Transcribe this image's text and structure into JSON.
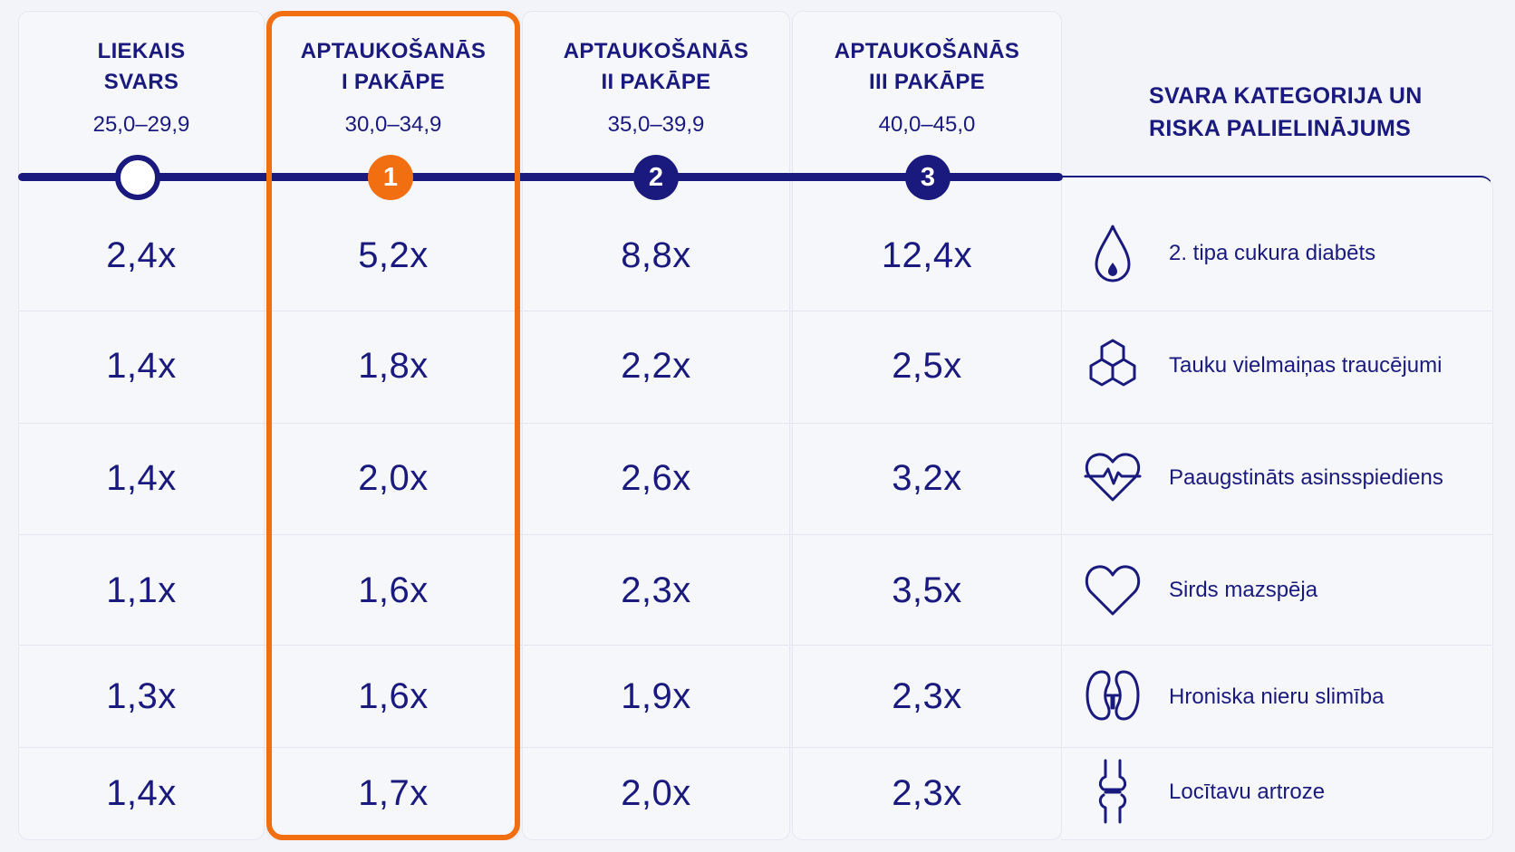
{
  "categories": [
    {
      "title_line1": "LIEKAIS",
      "title_line2": "SVARS",
      "bmi_range": "25,0–29,9",
      "marker_label": "",
      "marker_style": "empty"
    },
    {
      "title_line1": "APTAUKOŠANĀS",
      "title_line2": "I PAKĀPE",
      "bmi_range": "30,0–34,9",
      "marker_label": "1",
      "marker_style": "orange"
    },
    {
      "title_line1": "APTAUKOŠANĀS",
      "title_line2": "II PAKĀPE",
      "bmi_range": "35,0–39,9",
      "marker_label": "2",
      "marker_style": "navy"
    },
    {
      "title_line1": "APTAUKOŠANĀS",
      "title_line2": "III PAKĀPE",
      "bmi_range": "40,0–45,0",
      "marker_label": "3",
      "marker_style": "navy"
    }
  ],
  "right_header": {
    "line1": "SVARA KATEGORIJA UN",
    "line2": "RISKA PALIELINĀJUMS"
  },
  "rows": [
    {
      "condition": "2. tipa cukura diabēts",
      "icon": "blood-drop-icon",
      "values": [
        "2,4x",
        "5,2x",
        "8,8x",
        "12,4x"
      ]
    },
    {
      "condition": "Tauku vielmaiņas traucējumi",
      "icon": "hexagon-molecule-icon",
      "values": [
        "1,4x",
        "1,8x",
        "2,2x",
        "2,5x"
      ]
    },
    {
      "condition": "Paaugstināts asinsspiediens",
      "icon": "heart-pulse-icon",
      "values": [
        "1,4x",
        "2,0x",
        "2,6x",
        "3,2x"
      ]
    },
    {
      "condition": "Sirds mazspēja",
      "icon": "heart-icon",
      "values": [
        "1,1x",
        "1,6x",
        "2,3x",
        "3,5x"
      ]
    },
    {
      "condition": "Hroniska nieru slimība",
      "icon": "kidneys-icon",
      "values": [
        "1,3x",
        "1,6x",
        "1,9x",
        "2,3x"
      ]
    },
    {
      "condition": "Locītavu artroze",
      "icon": "knee-joint-icon",
      "values": [
        "1,4x",
        "1,7x",
        "2,0x",
        "2,3x"
      ]
    }
  ],
  "colors": {
    "navy": "#1a1a7e",
    "highlight": "#f26f11",
    "background": "#f3f4f9",
    "card": "#f6f7fb"
  },
  "highlighted_category_index": 1
}
